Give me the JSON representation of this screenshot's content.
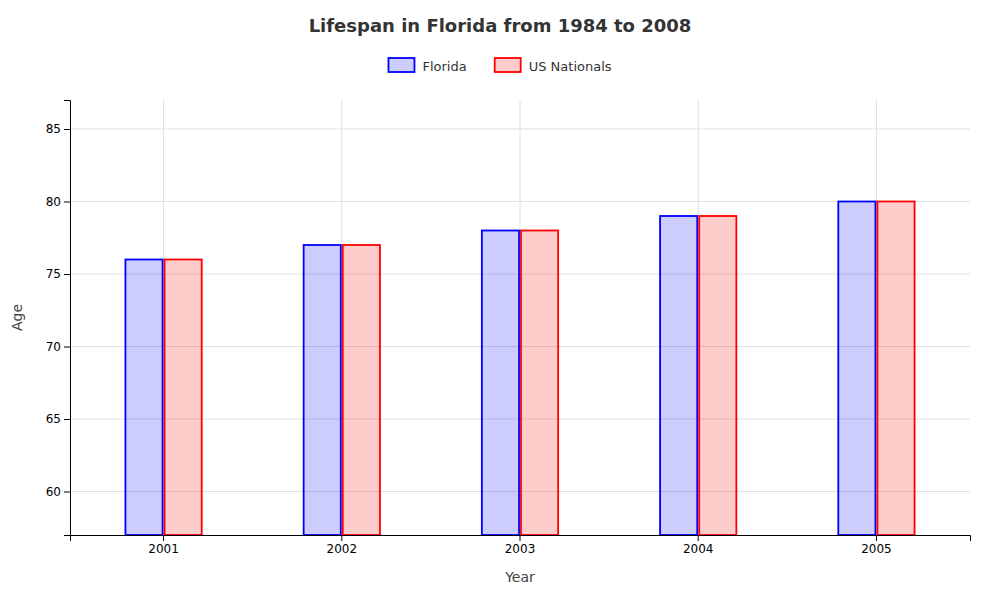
{
  "chart_data": {
    "type": "bar",
    "title": "Lifespan in Florida from 1984 to 2008",
    "x_label": "Year",
    "y_label": "Age",
    "categories": [
      "2001",
      "2002",
      "2003",
      "2004",
      "2005"
    ],
    "series": [
      {
        "name": "Florida",
        "color": "#0000ff",
        "values": [
          76,
          77,
          78,
          79,
          80
        ]
      },
      {
        "name": "US Nationals",
        "color": "#ff0000",
        "values": [
          76,
          77,
          78,
          79,
          80
        ]
      }
    ],
    "ylim": [
      57,
      87
    ],
    "yticks": [
      60,
      65,
      70,
      75,
      80,
      85
    ],
    "grid": true,
    "legend": "top"
  }
}
